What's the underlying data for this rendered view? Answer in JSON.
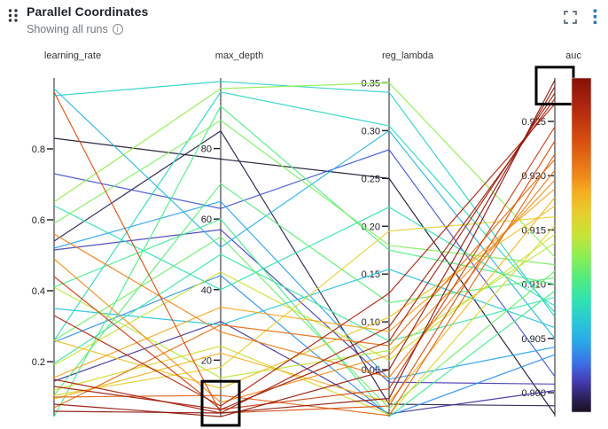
{
  "header": {
    "title": "Parallel Coordinates",
    "subtitle": "Showing all runs",
    "info_icon_glyph": "i"
  },
  "colors": {
    "title_text": "#1d2229",
    "subtitle_text": "#73787e",
    "axis_line": "#1b1d21",
    "tick_text": "#1b1d21",
    "axis_title_text": "#2e3338",
    "brush_stroke": "#000000",
    "kebab_blue": "#3276b1",
    "icon_gray": "#5a6a78",
    "handle_dark": "#2f373d"
  },
  "chart_data": {
    "type": "parallel-coordinates",
    "color_by": "auc",
    "legend": {
      "colorbar_for": "auc",
      "position": "right"
    },
    "axes": [
      {
        "key": "learning_rate",
        "label": "learning_rate",
        "min": 0.045,
        "max": 1.0,
        "ticks": [
          {
            "value": 0.2,
            "label": "0.2"
          },
          {
            "value": 0.4,
            "label": "0.4"
          },
          {
            "value": 0.6,
            "label": "0.6"
          },
          {
            "value": 0.8,
            "label": "0.8"
          }
        ]
      },
      {
        "key": "max_depth",
        "label": "max_depth",
        "min": 4,
        "max": 100,
        "ticks": [
          {
            "value": 20,
            "label": "20"
          },
          {
            "value": 40,
            "label": "40"
          },
          {
            "value": 60,
            "label": "60"
          },
          {
            "value": 80,
            "label": "80"
          }
        ]
      },
      {
        "key": "reg_lambda",
        "label": "reg_lambda",
        "min": 0.001,
        "max": 0.355,
        "ticks": [
          {
            "value": 0.05,
            "label": "0.05"
          },
          {
            "value": 0.1,
            "label": "0.10"
          },
          {
            "value": 0.15,
            "label": "0.15"
          },
          {
            "value": 0.2,
            "label": "0.20"
          },
          {
            "value": 0.25,
            "label": "0.25"
          },
          {
            "value": 0.3,
            "label": "0.30"
          },
          {
            "value": 0.35,
            "label": "0.35"
          }
        ]
      },
      {
        "key": "auc",
        "label": "auc",
        "min": 0.8978,
        "max": 0.929,
        "ticks": [
          {
            "value": 0.9,
            "label": "0.900"
          },
          {
            "value": 0.905,
            "label": "0.905"
          },
          {
            "value": 0.91,
            "label": "0.910"
          },
          {
            "value": 0.915,
            "label": "0.915"
          },
          {
            "value": 0.92,
            "label": "0.920"
          },
          {
            "value": 0.925,
            "label": "0.925"
          }
        ]
      }
    ],
    "colormap": [
      {
        "t": 0.0,
        "color": "#191022"
      },
      {
        "t": 0.04,
        "color": "#2a2158"
      },
      {
        "t": 0.093,
        "color": "#463bb3"
      },
      {
        "t": 0.146,
        "color": "#3c70e8"
      },
      {
        "t": 0.212,
        "color": "#2aa9e8"
      },
      {
        "t": 0.265,
        "color": "#29c4da"
      },
      {
        "t": 0.332,
        "color": "#2fe2b2"
      },
      {
        "t": 0.398,
        "color": "#50ec7f"
      },
      {
        "t": 0.464,
        "color": "#8aee55"
      },
      {
        "t": 0.531,
        "color": "#c8e335"
      },
      {
        "t": 0.597,
        "color": "#e7cd2d"
      },
      {
        "t": 0.663,
        "color": "#f6ac20"
      },
      {
        "t": 0.703,
        "color": "#f08c1a"
      },
      {
        "t": 0.809,
        "color": "#d9500f"
      },
      {
        "t": 0.915,
        "color": "#b02510"
      },
      {
        "t": 1.0,
        "color": "#871108"
      }
    ],
    "columns": [
      "learning_rate",
      "max_depth",
      "reg_lambda",
      "auc"
    ],
    "runs": [
      [
        0.06,
        5,
        0.02,
        0.9288
      ],
      [
        0.08,
        4,
        0.05,
        0.9282
      ],
      [
        0.13,
        6,
        0.08,
        0.9276
      ],
      [
        0.15,
        5,
        0.095,
        0.9271
      ],
      [
        0.33,
        7,
        0.13,
        0.9266
      ],
      [
        0.44,
        6,
        0.03,
        0.9245
      ],
      [
        0.96,
        5,
        0.012,
        0.9232
      ],
      [
        0.1,
        10,
        0.002,
        0.922
      ],
      [
        0.07,
        30,
        0.075,
        0.9215
      ],
      [
        0.56,
        28,
        0.042,
        0.9205
      ],
      [
        0.49,
        8,
        0.065,
        0.9196
      ],
      [
        0.155,
        35,
        0.09,
        0.9188
      ],
      [
        0.095,
        22,
        0.016,
        0.918
      ],
      [
        0.26,
        12,
        0.105,
        0.9172
      ],
      [
        0.105,
        18,
        0.195,
        0.9162
      ],
      [
        0.12,
        24,
        0.003,
        0.9154
      ],
      [
        0.19,
        45,
        0.06,
        0.9146
      ],
      [
        0.41,
        15,
        0.07,
        0.9138
      ],
      [
        0.65,
        97,
        0.35,
        0.9125
      ],
      [
        0.59,
        88,
        0.18,
        0.9118
      ],
      [
        0.26,
        55,
        0.01,
        0.9112
      ],
      [
        0.105,
        70,
        0.12,
        0.9106
      ],
      [
        0.045,
        92,
        0.175,
        0.91
      ],
      [
        0.41,
        60,
        0.001,
        0.9094
      ],
      [
        0.195,
        50,
        0.08,
        0.9088
      ],
      [
        0.64,
        40,
        0.22,
        0.908
      ],
      [
        0.26,
        96,
        0.305,
        0.9074
      ],
      [
        0.95,
        99,
        0.34,
        0.907
      ],
      [
        0.35,
        30,
        0.155,
        0.906
      ],
      [
        0.97,
        52,
        0.3,
        0.905
      ],
      [
        0.52,
        65,
        0.04,
        0.9042
      ],
      [
        0.255,
        44,
        0.002,
        0.9035
      ],
      [
        0.73,
        63,
        0.28,
        0.9015
      ],
      [
        0.515,
        57,
        0.037,
        0.9008
      ],
      [
        0.145,
        31,
        0.004,
        0.9002
      ],
      [
        0.54,
        85,
        0.014,
        0.8988
      ],
      [
        0.83,
        77,
        0.25,
        0.898
      ]
    ],
    "brushes": [
      {
        "axis": "auc",
        "from": 0.9266,
        "to": 0.93
      },
      {
        "axis": "max_depth",
        "from": 1.5,
        "to": 14
      }
    ]
  }
}
